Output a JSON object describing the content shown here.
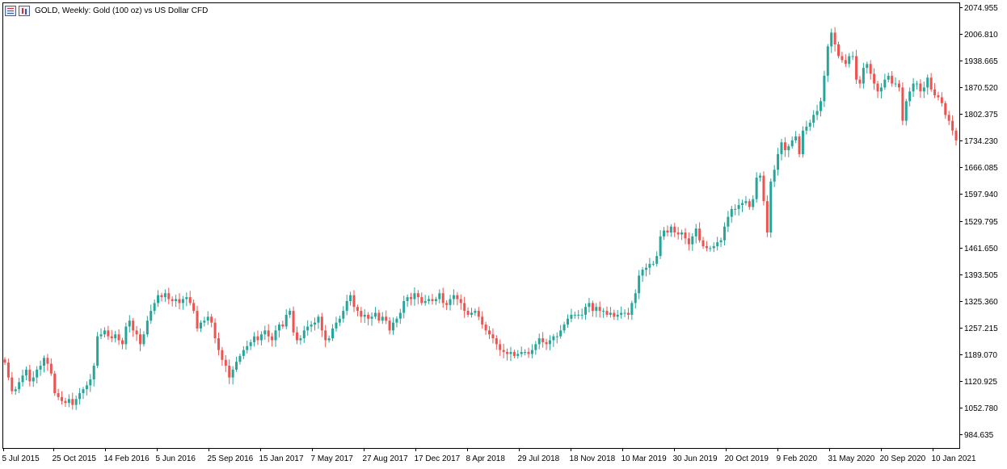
{
  "header": {
    "title": "GOLD, Weekly:  Gold (100 oz) vs US Dollar CFD",
    "icon_left": "chart-window-icon",
    "icon_right": "candle-chart-icon"
  },
  "colors": {
    "background": "#ffffff",
    "bull": "#26a69a",
    "bear": "#ef5350",
    "axis": "#000000"
  },
  "chart_data": {
    "type": "candlestick",
    "symbol": "GOLD",
    "timeframe": "Weekly",
    "title": "GOLD, Weekly:  Gold (100 oz) vs US Dollar CFD",
    "ylim": [
      950,
      2085
    ],
    "y_axis_position": "right",
    "grid": false,
    "yticks": [
      "2074.955",
      "2006.810",
      "1938.665",
      "1870.520",
      "1802.375",
      "1734.230",
      "1666.085",
      "1597.940",
      "1529.795",
      "1461.650",
      "1393.505",
      "1325.360",
      "1257.215",
      "1189.070",
      "1120.925",
      "1052.780",
      "984.635"
    ],
    "xticks": [
      "5 Jul 2015",
      "25 Oct 2015",
      "14 Feb 2016",
      "5 Jun 2016",
      "25 Sep 2016",
      "15 Jan 2017",
      "7 May 2017",
      "27 Aug 2017",
      "17 Dec 2017",
      "8 Apr 2018",
      "29 Jul 2018",
      "18 Nov 2018",
      "10 Mar 2019",
      "30 Jun 2019",
      "20 Oct 2019",
      "9 Feb 2020",
      "31 May 2020",
      "20 Sep 2020",
      "10 Jan 2021"
    ],
    "close_series": [
      1168,
      1130,
      1095,
      1100,
      1118,
      1135,
      1150,
      1120,
      1130,
      1150,
      1160,
      1180,
      1165,
      1140,
      1090,
      1080,
      1070,
      1065,
      1075,
      1060,
      1075,
      1090,
      1100,
      1110,
      1125,
      1160,
      1235,
      1240,
      1250,
      1235,
      1230,
      1240,
      1225,
      1215,
      1260,
      1275,
      1250,
      1240,
      1215,
      1240,
      1275,
      1300,
      1320,
      1340,
      1335,
      1345,
      1330,
      1325,
      1330,
      1320,
      1330,
      1335,
      1320,
      1300,
      1255,
      1270,
      1275,
      1285,
      1270,
      1230,
      1200,
      1175,
      1160,
      1130,
      1150,
      1170,
      1185,
      1200,
      1210,
      1220,
      1235,
      1225,
      1240,
      1250,
      1235,
      1225,
      1250,
      1265,
      1260,
      1290,
      1300,
      1245,
      1225,
      1230,
      1250,
      1260,
      1265,
      1270,
      1285,
      1250,
      1225,
      1230,
      1255,
      1270,
      1280,
      1300,
      1325,
      1340,
      1310,
      1300,
      1285,
      1290,
      1280,
      1285,
      1295,
      1275,
      1285,
      1275,
      1250,
      1270,
      1280,
      1295,
      1325,
      1335,
      1330,
      1345,
      1335,
      1320,
      1325,
      1330,
      1325,
      1330,
      1345,
      1320,
      1315,
      1330,
      1340,
      1330,
      1320,
      1300,
      1290,
      1295,
      1300,
      1285,
      1265,
      1250,
      1240,
      1230,
      1215,
      1200,
      1195,
      1190,
      1195,
      1185,
      1190,
      1195,
      1195,
      1190,
      1200,
      1215,
      1230,
      1220,
      1215,
      1225,
      1235,
      1235,
      1250,
      1265,
      1280,
      1290,
      1290,
      1290,
      1290,
      1310,
      1320,
      1300,
      1310,
      1300,
      1300,
      1290,
      1295,
      1285,
      1290,
      1295,
      1295,
      1290,
      1320,
      1345,
      1390,
      1405,
      1410,
      1420,
      1420,
      1440,
      1490,
      1505,
      1500,
      1515,
      1500,
      1495,
      1500,
      1485,
      1470,
      1490,
      1510,
      1480,
      1465,
      1460,
      1460,
      1465,
      1475,
      1480,
      1515,
      1540,
      1560,
      1560,
      1570,
      1575,
      1580,
      1565,
      1585,
      1640,
      1645,
      1580,
      1500,
      1630,
      1660,
      1700,
      1730,
      1710,
      1720,
      1735,
      1745,
      1700,
      1760,
      1770,
      1780,
      1800,
      1810,
      1835,
      1900,
      1975,
      2010,
      1980,
      1950,
      1940,
      1930,
      1950,
      1950,
      1890,
      1880,
      1920,
      1930,
      1905,
      1880,
      1860,
      1870,
      1890,
      1900,
      1880,
      1880,
      1870,
      1785,
      1835,
      1860,
      1880,
      1880,
      1860,
      1870,
      1895,
      1865,
      1850,
      1845,
      1830,
      1800,
      1785,
      1760,
      1735
    ]
  }
}
